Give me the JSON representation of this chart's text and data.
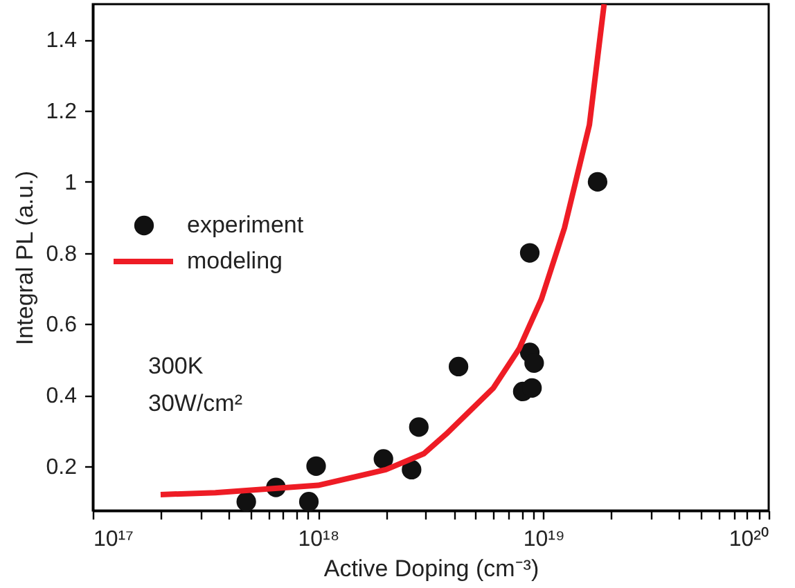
{
  "chart_data": {
    "type": "scatter",
    "xlabel": "Active Doping (cm⁻³)",
    "ylabel": "Integral PL (a.u.)",
    "log": "x",
    "xlim": [
      1e+17,
      1e+20
    ],
    "xticks": [
      {
        "value": 1e+17,
        "label": "10¹⁷"
      },
      {
        "value": 2e+17,
        "label": null
      },
      {
        "value": 3e+17,
        "label": null
      },
      {
        "value": 4e+17,
        "label": null
      },
      {
        "value": 5e+17,
        "label": null
      },
      {
        "value": 6e+17,
        "label": null
      },
      {
        "value": 7e+17,
        "label": null
      },
      {
        "value": 8e+17,
        "label": null
      },
      {
        "value": 9e+17,
        "label": null
      },
      {
        "value": 1e+18,
        "label": "10¹⁸"
      },
      {
        "value": 2e+18,
        "label": null
      },
      {
        "value": 3e+18,
        "label": null
      },
      {
        "value": 4e+18,
        "label": null
      },
      {
        "value": 5e+18,
        "label": null
      },
      {
        "value": 6e+18,
        "label": null
      },
      {
        "value": 7e+18,
        "label": null
      },
      {
        "value": 8e+18,
        "label": null
      },
      {
        "value": 9e+18,
        "label": null
      },
      {
        "value": 1e+19,
        "label": "10¹⁹"
      },
      {
        "value": 2e+19,
        "label": null
      },
      {
        "value": 3e+19,
        "label": null
      },
      {
        "value": 4e+19,
        "label": null
      },
      {
        "value": 5e+19,
        "label": null
      },
      {
        "value": 6e+19,
        "label": null
      },
      {
        "value": 7e+19,
        "label": null
      },
      {
        "value": 8e+19,
        "label": null
      },
      {
        "value": 9e+19,
        "label": null
      },
      {
        "value": 1e+20,
        "label": "10²⁰"
      }
    ],
    "ylim": [
      0.075,
      1.5
    ],
    "yticks": [
      0.2,
      0.4,
      0.6,
      0.8,
      1,
      1.2,
      1.4
    ],
    "grid": false,
    "legend": "left",
    "annotations": [
      "300K",
      "30W/cm²"
    ],
    "series": [
      {
        "name": "experiment",
        "type": "scatter",
        "color": "#111111",
        "marker": "circle",
        "x": [
          4.8e+17,
          6.5e+17,
          9.1e+17,
          9.8e+17,
          1.95e+18,
          2.6e+18,
          2.8e+18,
          4.2e+18,
          8.7e+18,
          8.7e+18,
          9.1e+18,
          8.1e+18,
          8.9e+18,
          1.74e+19
        ],
        "values": [
          0.1,
          0.14,
          0.1,
          0.2,
          0.22,
          0.19,
          0.31,
          0.48,
          0.8,
          0.52,
          0.49,
          0.41,
          0.42,
          1.0
        ]
      },
      {
        "name": "modeling",
        "type": "line",
        "color": "#ee1c25",
        "marker": "none",
        "line_style": "solid",
        "x": [
          2e+17,
          3.5e+17,
          1e+18,
          2e+18,
          2.95e+18,
          3.7e+18,
          6e+18,
          7.8e+18,
          9.8e+18,
          1.24e+19,
          1.6e+19,
          1.86e+19
        ],
        "values": [
          0.12,
          0.125,
          0.146,
          0.19,
          0.235,
          0.29,
          0.42,
          0.53,
          0.67,
          0.87,
          1.16,
          1.5
        ]
      }
    ]
  }
}
